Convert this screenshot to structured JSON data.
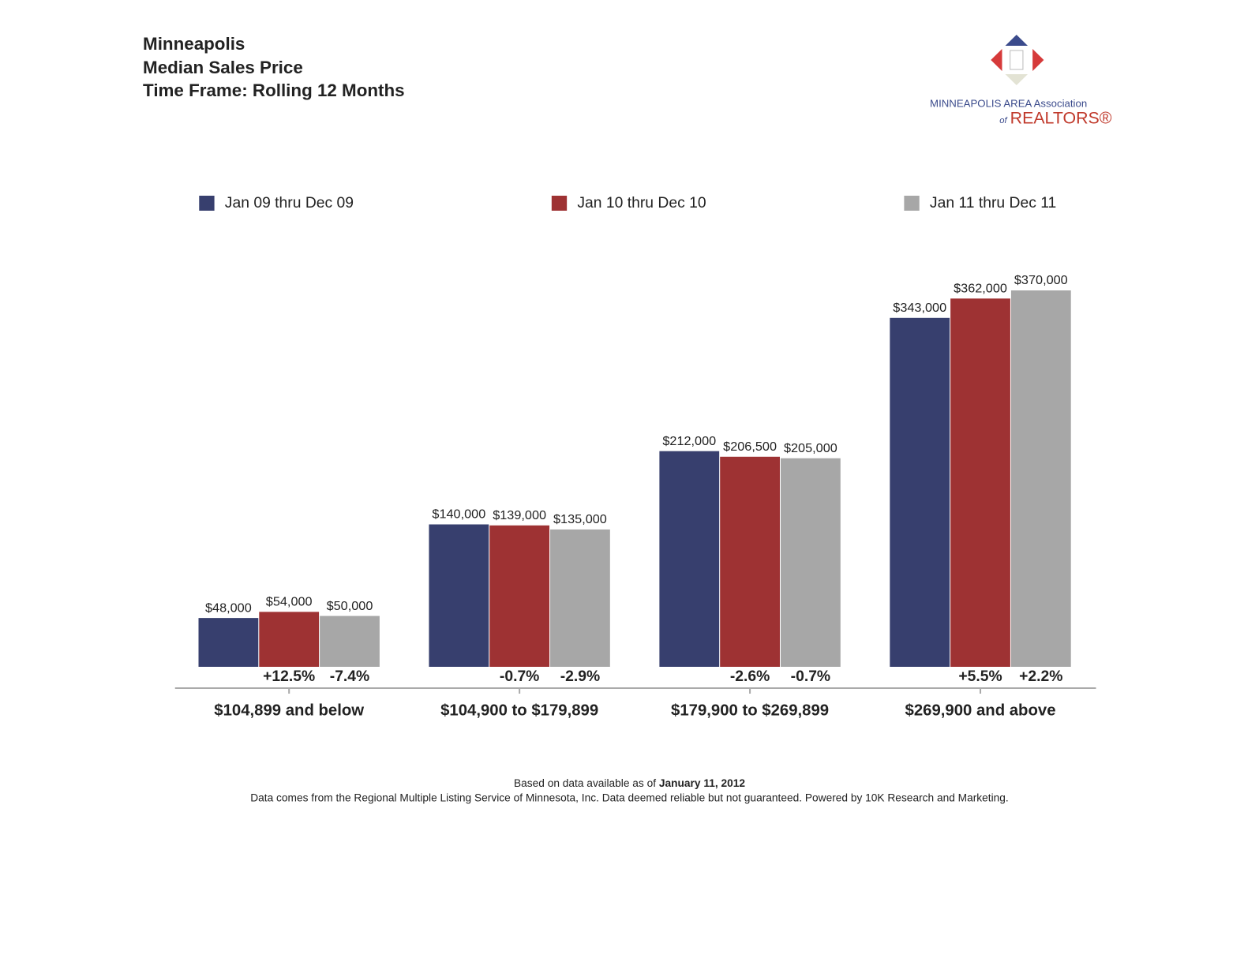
{
  "chart_data": {
    "type": "bar",
    "title": [
      "Minneapolis",
      "Median Sales Price",
      "Time Frame: Rolling 12 Months"
    ],
    "logo": {
      "line1": "MINNEAPOLIS AREA Association",
      "line2_prefix": "of",
      "line2": "REALTORS®"
    },
    "categories": [
      "$104,899 and below",
      "$104,900 to $179,899",
      "$179,900 to $269,899",
      "$269,900 and above"
    ],
    "series": [
      {
        "name": "Jan 09 thru Dec 09",
        "color": "#373f6e",
        "values": [
          48000,
          140000,
          212000,
          343000
        ],
        "value_labels": [
          "$48,000",
          "$140,000",
          "$212,000",
          "$343,000"
        ]
      },
      {
        "name": "Jan 10 thru Dec 10",
        "color": "#9e3233",
        "values": [
          54000,
          139000,
          206500,
          362000
        ],
        "value_labels": [
          "$54,000",
          "$139,000",
          "$206,500",
          "$362,000"
        ],
        "changes": [
          12.5,
          -0.7,
          -2.6,
          5.5
        ],
        "change_labels": [
          "+12.5%",
          "-0.7%",
          "-2.6%",
          "+5.5%"
        ]
      },
      {
        "name": "Jan 11 thru Dec 11",
        "color": "#a7a7a7",
        "values": [
          50000,
          135000,
          205000,
          370000
        ],
        "value_labels": [
          "$50,000",
          "$135,000",
          "$205,000",
          "$370,000"
        ],
        "changes": [
          -7.4,
          -2.9,
          -0.7,
          2.2
        ],
        "change_labels": [
          "-7.4%",
          "-2.9%",
          "-0.7%",
          "+2.2%"
        ]
      }
    ],
    "footnote": {
      "prefix": "Based on data available as of",
      "date": "January 11, 2012",
      "source": "Data comes from the Regional Multiple Listing Service of Minnesota, Inc. Data deemed reliable but not guaranteed. Powered by 10K Research and Marketing."
    }
  }
}
